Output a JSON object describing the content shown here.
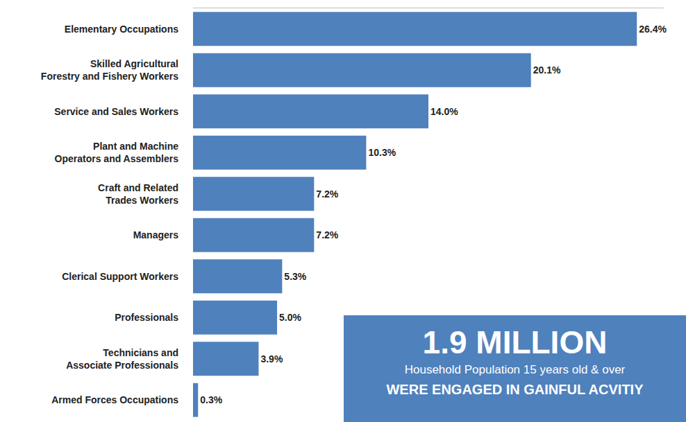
{
  "chart_data": {
    "type": "bar",
    "orientation": "horizontal",
    "categories": [
      "Elementary Occupations",
      "Skilled Agricultural Forestry and Fishery Workers",
      "Service and Sales Workers",
      "Plant and Machine Operators and Assemblers",
      "Craft and Related Trades Workers",
      "Managers",
      "Clerical Support Workers",
      "Professionals",
      "Technicians and Associate Professionals",
      "Armed Forces Occupations"
    ],
    "values": [
      26.4,
      20.1,
      14.0,
      10.3,
      7.2,
      7.2,
      5.3,
      5.0,
      3.9,
      0.3
    ],
    "value_labels": [
      "26.4%",
      "20.1%",
      "14.0%",
      "10.3%",
      "7.2%",
      "7.2%",
      "5.3%",
      "5.0%",
      "3.9%",
      "0.3%"
    ],
    "color": "#4f81bd",
    "xlim": [
      0,
      28
    ],
    "data_labels": true,
    "tick_labels": "y",
    "grid": false,
    "annotations": [
      "1.9 MILLION",
      "Household Population 15 years old & over",
      "WERE ENGAGED IN GAINFUL ACVITIY"
    ]
  }
}
